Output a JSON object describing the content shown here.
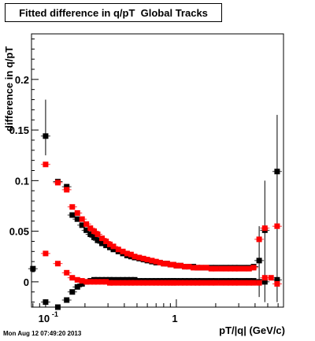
{
  "chart_data": {
    "type": "scatter",
    "title": "Fitted difference in q/pT  Global Tracks",
    "xlabel": "pT/|q| (GeV/c)",
    "ylabel": "difference in q/pT",
    "x_scale": "log",
    "xlim": [
      0.078,
      6.6
    ],
    "ylim": [
      -0.025,
      0.245
    ],
    "x_tick_labels": [
      {
        "value": 0.1,
        "base": "10",
        "exp": "-1"
      },
      {
        "value": 1,
        "base": "1",
        "exp": ""
      }
    ],
    "y_tick_labels": [
      {
        "value": 0,
        "label": "0"
      },
      {
        "value": 0.05,
        "label": "0.05"
      },
      {
        "value": 0.1,
        "label": "0.1"
      },
      {
        "value": 0.15,
        "label": "0.15"
      },
      {
        "value": 0.2,
        "label": "0.2"
      }
    ],
    "grid": true,
    "series": [
      {
        "color": "#000000",
        "x": [
          0.08,
          0.1,
          0.124,
          0.145,
          0.16,
          0.175,
          0.19,
          0.205,
          0.22,
          0.235,
          0.25,
          0.27,
          0.29,
          0.31,
          0.33,
          0.36,
          0.39,
          0.42,
          0.45,
          0.48,
          0.52,
          0.56,
          0.6,
          0.65,
          0.7,
          0.75,
          0.8,
          0.85,
          0.9,
          0.95,
          1.0,
          1.08,
          1.16,
          1.25,
          1.35,
          1.45,
          1.55,
          1.7,
          1.85,
          2.0,
          2.2,
          2.4,
          2.6,
          2.8,
          3.0,
          3.3,
          3.6,
          3.9,
          4.3,
          4.75,
          5.9
        ],
        "y": [
          0.013,
          -0.02,
          -0.025,
          -0.018,
          -0.01,
          -0.005,
          -0.002,
          0.0,
          0.001,
          0.002,
          0.002,
          0.002,
          0.002,
          0.002,
          0.002,
          0.002,
          0.002,
          0.002,
          0.002,
          0.002,
          0.001,
          0.001,
          0.001,
          0.001,
          0.001,
          0.001,
          0.001,
          0.001,
          0.001,
          0.001,
          0.001,
          0.001,
          0.001,
          0.001,
          0.001,
          0.001,
          0.001,
          0.001,
          0.001,
          0.001,
          0.001,
          0.001,
          0.001,
          0.001,
          0.001,
          0.001,
          0.001,
          0.001,
          0.0,
          0.0,
          0.002
        ]
      },
      {
        "color": "#ff0000",
        "x": [
          0.1,
          0.124,
          0.145,
          0.16,
          0.175,
          0.19,
          0.205,
          0.22,
          0.235,
          0.25,
          0.27,
          0.29,
          0.31,
          0.33,
          0.36,
          0.39,
          0.42,
          0.45,
          0.48,
          0.52,
          0.56,
          0.6,
          0.65,
          0.7,
          0.75,
          0.8,
          0.85,
          0.9,
          0.95,
          1.0,
          1.08,
          1.16,
          1.25,
          1.35,
          1.45,
          1.55,
          1.7,
          1.85,
          2.0,
          2.2,
          2.4,
          2.6,
          2.8,
          3.0,
          3.3,
          3.6,
          3.9,
          4.3,
          4.75,
          5.3,
          5.9
        ],
        "y": [
          0.028,
          0.018,
          0.009,
          0.004,
          0.002,
          0.001,
          0.0,
          0.0,
          0.0,
          0.0,
          0.0,
          0.0,
          -0.001,
          -0.001,
          -0.001,
          -0.001,
          -0.001,
          -0.001,
          -0.001,
          -0.001,
          -0.001,
          -0.001,
          -0.001,
          -0.001,
          -0.001,
          -0.001,
          -0.001,
          -0.001,
          -0.001,
          -0.001,
          -0.001,
          -0.001,
          -0.001,
          -0.001,
          -0.001,
          -0.001,
          -0.001,
          -0.001,
          -0.001,
          -0.001,
          -0.001,
          -0.001,
          -0.001,
          -0.001,
          -0.001,
          -0.001,
          -0.001,
          -0.001,
          0.004,
          0.004,
          -0.002
        ]
      },
      {
        "color": "#000000",
        "x": [
          0.1,
          0.124,
          0.145,
          0.16,
          0.175,
          0.19,
          0.205,
          0.22,
          0.235,
          0.25,
          0.27,
          0.29,
          0.31,
          0.33,
          0.36,
          0.39,
          0.42,
          0.45,
          0.48,
          0.52,
          0.56,
          0.6,
          0.65,
          0.7,
          0.75,
          0.8,
          0.85,
          0.9,
          0.95,
          1.0,
          1.08,
          1.16,
          1.25,
          1.35,
          1.45,
          1.55,
          1.7,
          1.85,
          2.0,
          2.2,
          2.4,
          2.6,
          2.8,
          3.0,
          3.3,
          3.6,
          3.9,
          4.3,
          4.75,
          5.9
        ],
        "y": [
          0.144,
          0.099,
          0.094,
          0.066,
          0.062,
          0.056,
          0.051,
          0.047,
          0.044,
          0.041,
          0.038,
          0.036,
          0.034,
          0.032,
          0.03,
          0.028,
          0.026,
          0.025,
          0.024,
          0.023,
          0.022,
          0.021,
          0.02,
          0.019,
          0.019,
          0.018,
          0.018,
          0.017,
          0.017,
          0.016,
          0.016,
          0.015,
          0.015,
          0.015,
          0.014,
          0.014,
          0.014,
          0.014,
          0.014,
          0.014,
          0.014,
          0.014,
          0.014,
          0.014,
          0.014,
          0.014,
          0.015,
          0.021,
          0.051,
          0.109
        ]
      },
      {
        "color": "#ff0000",
        "x": [
          0.1,
          0.124,
          0.145,
          0.16,
          0.175,
          0.19,
          0.205,
          0.22,
          0.235,
          0.25,
          0.27,
          0.29,
          0.31,
          0.33,
          0.36,
          0.39,
          0.42,
          0.45,
          0.48,
          0.52,
          0.56,
          0.6,
          0.65,
          0.7,
          0.75,
          0.8,
          0.85,
          0.9,
          0.95,
          1.0,
          1.08,
          1.16,
          1.25,
          1.35,
          1.45,
          1.55,
          1.7,
          1.85,
          2.0,
          2.2,
          2.4,
          2.6,
          2.8,
          3.0,
          3.3,
          3.6,
          3.9,
          4.3,
          4.75,
          5.9
        ],
        "y": [
          0.116,
          0.098,
          0.091,
          0.074,
          0.068,
          0.062,
          0.057,
          0.053,
          0.05,
          0.047,
          0.043,
          0.04,
          0.037,
          0.035,
          0.032,
          0.03,
          0.028,
          0.027,
          0.025,
          0.024,
          0.023,
          0.022,
          0.021,
          0.02,
          0.019,
          0.018,
          0.018,
          0.017,
          0.017,
          0.016,
          0.016,
          0.015,
          0.015,
          0.014,
          0.014,
          0.014,
          0.014,
          0.013,
          0.013,
          0.013,
          0.013,
          0.013,
          0.013,
          0.013,
          0.013,
          0.013,
          0.014,
          0.042,
          0.053,
          0.055
        ]
      }
    ],
    "error_bars": [
      {
        "x": 0.1,
        "y": 0.144,
        "low": 0.125,
        "high": 0.18
      },
      {
        "x": 4.3,
        "y": 0.021,
        "low": -0.015,
        "high": 0.055
      },
      {
        "x": 4.75,
        "y": 0.051,
        "low": -0.02,
        "high": 0.1
      },
      {
        "x": 5.9,
        "y": 0.109,
        "low": -0.02,
        "high": 0.165
      }
    ]
  },
  "footer": {
    "timestamp": "Mon Aug 12 07:49:20 2013"
  }
}
